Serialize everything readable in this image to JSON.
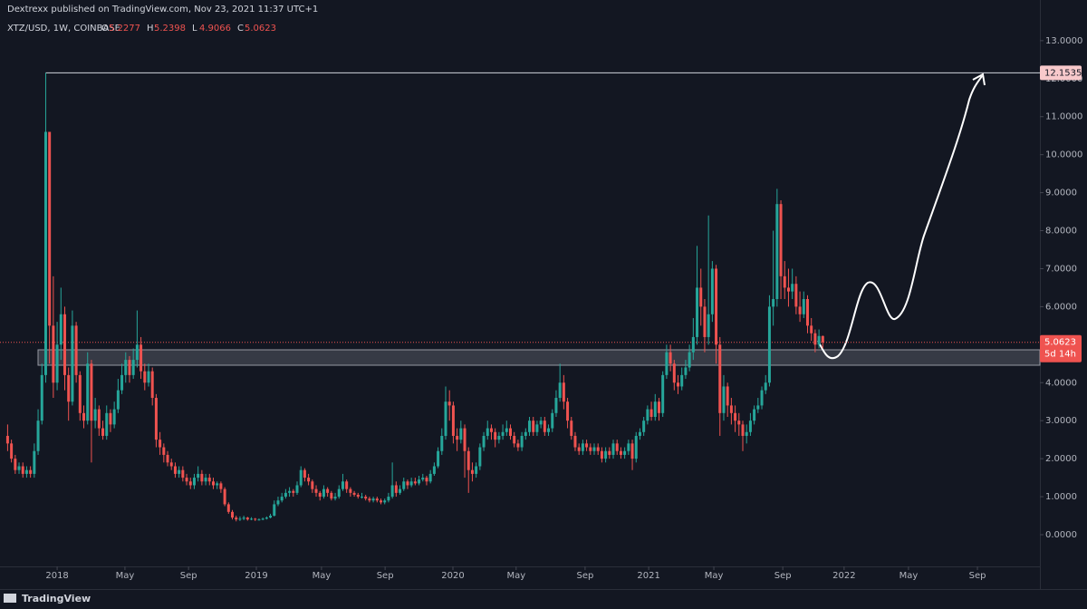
{
  "chart_data": {
    "type": "candlestick",
    "header": "Dextrexx published on TradingView.com, Nov 23, 2021 11:37 UTC+1",
    "legend": {
      "symbol": "XTZ/USD, 1W, COINBASE",
      "open": {
        "label": "O",
        "value": 5.2277
      },
      "high": {
        "label": "H",
        "value": 5.2398
      },
      "low": {
        "label": "L",
        "value": 4.9066
      },
      "close": {
        "label": "C",
        "value": 5.0623
      }
    },
    "footer": "TradingView",
    "up_color": "#26a69a",
    "down_color": "#ef5350",
    "level": 12.1535,
    "last_price": {
      "value": 5.0623,
      "countdown": "5d 14h"
    },
    "xlim": [
      -2,
      271
    ],
    "ylim": [
      -0.835,
      14.07
    ],
    "xticks": [
      {
        "value": 13,
        "label": "2018"
      },
      {
        "value": 30.8,
        "label": "May"
      },
      {
        "value": 47.5,
        "label": "Sep"
      },
      {
        "value": 65.3,
        "label": "2019"
      },
      {
        "value": 82.4,
        "label": "May"
      },
      {
        "value": 99.1,
        "label": "Sep"
      },
      {
        "value": 116.9,
        "label": "2020"
      },
      {
        "value": 133.5,
        "label": "May"
      },
      {
        "value": 151.6,
        "label": "Sep"
      },
      {
        "value": 168.3,
        "label": "2021"
      },
      {
        "value": 185.4,
        "label": "May"
      },
      {
        "value": 203.5,
        "label": "Sep"
      },
      {
        "value": 219.6,
        "label": "2022"
      },
      {
        "value": 236.5,
        "label": "May"
      },
      {
        "value": 254.6,
        "label": "Sep"
      }
    ],
    "yticks": [
      {
        "value": 0,
        "label": "0.0000"
      },
      {
        "value": 1,
        "label": "1.0000"
      },
      {
        "value": 2,
        "label": "2.0000"
      },
      {
        "value": 3,
        "label": "3.0000"
      },
      {
        "value": 4,
        "label": "4.0000"
      },
      {
        "value": 5,
        "label": "5.0000"
      },
      {
        "value": 6,
        "label": "6.0000"
      },
      {
        "value": 7,
        "label": "7.0000"
      },
      {
        "value": 8,
        "label": "8.0000"
      },
      {
        "value": 9,
        "label": "9.0000"
      },
      {
        "value": 10,
        "label": "10.0000"
      },
      {
        "value": 11,
        "label": "11.0000"
      },
      {
        "value": 12,
        "label": "12.0000"
      },
      {
        "value": 13,
        "label": "13.0000"
      }
    ],
    "ohlc": [
      [
        2.6,
        2.9,
        2.2,
        2.4
      ],
      [
        2.4,
        2.5,
        1.9,
        2.0
      ],
      [
        2.0,
        2.1,
        1.6,
        1.7
      ],
      [
        1.7,
        1.9,
        1.6,
        1.8
      ],
      [
        1.8,
        1.9,
        1.5,
        1.6
      ],
      [
        1.6,
        1.8,
        1.5,
        1.7
      ],
      [
        1.7,
        1.8,
        1.5,
        1.6
      ],
      [
        1.6,
        2.4,
        1.5,
        2.2
      ],
      [
        2.2,
        3.3,
        2.1,
        3.0
      ],
      [
        3.0,
        4.5,
        2.9,
        4.2
      ],
      [
        4.2,
        12.1535,
        4.0,
        10.6
      ],
      [
        10.6,
        10.6,
        4.5,
        5.5
      ],
      [
        5.5,
        6.8,
        3.6,
        4.0
      ],
      [
        4.0,
        5.6,
        3.8,
        5.0
      ],
      [
        5.0,
        6.5,
        4.6,
        5.8
      ],
      [
        5.8,
        6.0,
        3.8,
        4.2
      ],
      [
        4.2,
        4.4,
        3.0,
        3.5
      ],
      [
        3.5,
        5.9,
        3.4,
        5.5
      ],
      [
        5.5,
        5.6,
        4.0,
        4.2
      ],
      [
        4.2,
        4.3,
        3.0,
        3.2
      ],
      [
        3.2,
        3.4,
        2.8,
        3.0
      ],
      [
        3.0,
        4.8,
        2.9,
        4.5
      ],
      [
        4.5,
        4.6,
        1.9,
        3.0
      ],
      [
        3.0,
        3.6,
        2.8,
        3.3
      ],
      [
        3.3,
        3.4,
        2.6,
        2.8
      ],
      [
        2.8,
        3.0,
        2.5,
        2.6
      ],
      [
        2.6,
        3.4,
        2.5,
        3.2
      ],
      [
        3.2,
        3.3,
        2.7,
        2.9
      ],
      [
        2.9,
        3.5,
        2.8,
        3.3
      ],
      [
        3.3,
        4.1,
        3.2,
        3.8
      ],
      [
        3.8,
        4.5,
        3.7,
        4.2
      ],
      [
        4.2,
        4.8,
        4.0,
        4.6
      ],
      [
        4.6,
        4.7,
        4.0,
        4.2
      ],
      [
        4.2,
        4.9,
        4.1,
        4.6
      ],
      [
        4.6,
        5.9,
        4.4,
        5.0
      ],
      [
        5.0,
        5.2,
        4.1,
        4.3
      ],
      [
        4.3,
        4.5,
        3.8,
        4.0
      ],
      [
        4.0,
        4.5,
        3.9,
        4.3
      ],
      [
        4.3,
        4.4,
        3.4,
        3.6
      ],
      [
        3.6,
        3.7,
        2.3,
        2.5
      ],
      [
        2.5,
        2.7,
        2.1,
        2.3
      ],
      [
        2.3,
        2.4,
        1.9,
        2.1
      ],
      [
        2.1,
        2.2,
        1.8,
        1.9
      ],
      [
        1.9,
        2.0,
        1.7,
        1.8
      ],
      [
        1.8,
        1.9,
        1.5,
        1.6
      ],
      [
        1.6,
        1.8,
        1.5,
        1.7
      ],
      [
        1.7,
        1.8,
        1.4,
        1.5
      ],
      [
        1.5,
        1.6,
        1.3,
        1.4
      ],
      [
        1.4,
        1.5,
        1.2,
        1.3
      ],
      [
        1.3,
        1.6,
        1.2,
        1.5
      ],
      [
        1.5,
        1.8,
        1.4,
        1.6
      ],
      [
        1.6,
        1.7,
        1.3,
        1.4
      ],
      [
        1.4,
        1.6,
        1.3,
        1.5
      ],
      [
        1.5,
        1.6,
        1.3,
        1.4
      ],
      [
        1.4,
        1.5,
        1.2,
        1.3
      ],
      [
        1.3,
        1.4,
        1.2,
        1.35
      ],
      [
        1.35,
        1.4,
        1.1,
        1.2
      ],
      [
        1.2,
        1.25,
        0.75,
        0.8
      ],
      [
        0.8,
        0.85,
        0.55,
        0.6
      ],
      [
        0.6,
        0.65,
        0.4,
        0.45
      ],
      [
        0.45,
        0.5,
        0.35,
        0.4
      ],
      [
        0.4,
        0.48,
        0.36,
        0.42
      ],
      [
        0.42,
        0.5,
        0.38,
        0.45
      ],
      [
        0.45,
        0.47,
        0.37,
        0.4
      ],
      [
        0.4,
        0.46,
        0.38,
        0.42
      ],
      [
        0.42,
        0.44,
        0.36,
        0.4
      ],
      [
        0.4,
        0.43,
        0.37,
        0.4
      ],
      [
        0.4,
        0.45,
        0.38,
        0.42
      ],
      [
        0.42,
        0.48,
        0.4,
        0.45
      ],
      [
        0.45,
        0.55,
        0.43,
        0.5
      ],
      [
        0.5,
        0.9,
        0.48,
        0.8
      ],
      [
        0.8,
        1.0,
        0.75,
        0.9
      ],
      [
        0.9,
        1.1,
        0.85,
        1.0
      ],
      [
        1.0,
        1.2,
        0.95,
        1.1
      ],
      [
        1.1,
        1.25,
        1.0,
        1.15
      ],
      [
        1.15,
        1.2,
        1.0,
        1.1
      ],
      [
        1.1,
        1.4,
        1.05,
        1.3
      ],
      [
        1.3,
        1.8,
        1.25,
        1.7
      ],
      [
        1.7,
        1.75,
        1.4,
        1.5
      ],
      [
        1.5,
        1.6,
        1.3,
        1.4
      ],
      [
        1.4,
        1.45,
        1.1,
        1.2
      ],
      [
        1.2,
        1.3,
        1.0,
        1.1
      ],
      [
        1.1,
        1.15,
        0.9,
        1.0
      ],
      [
        1.0,
        1.3,
        0.95,
        1.2
      ],
      [
        1.2,
        1.25,
        1.0,
        1.1
      ],
      [
        1.1,
        1.15,
        0.9,
        0.95
      ],
      [
        0.95,
        1.1,
        0.9,
        1.0
      ],
      [
        1.0,
        1.3,
        0.95,
        1.2
      ],
      [
        1.2,
        1.6,
        1.15,
        1.4
      ],
      [
        1.4,
        1.45,
        1.1,
        1.2
      ],
      [
        1.2,
        1.25,
        1.0,
        1.1
      ],
      [
        1.1,
        1.15,
        1.0,
        1.05
      ],
      [
        1.05,
        1.1,
        0.95,
        1.0
      ],
      [
        1.0,
        1.1,
        0.95,
        1.0
      ],
      [
        1.0,
        1.05,
        0.9,
        0.95
      ],
      [
        0.95,
        1.0,
        0.85,
        0.9
      ],
      [
        0.9,
        1.0,
        0.85,
        0.95
      ],
      [
        0.95,
        1.0,
        0.85,
        0.9
      ],
      [
        0.9,
        0.95,
        0.8,
        0.85
      ],
      [
        0.85,
        0.95,
        0.8,
        0.9
      ],
      [
        0.9,
        1.1,
        0.85,
        1.0
      ],
      [
        1.0,
        1.9,
        0.95,
        1.3
      ],
      [
        1.3,
        1.4,
        1.0,
        1.1
      ],
      [
        1.1,
        1.3,
        1.05,
        1.2
      ],
      [
        1.2,
        1.5,
        1.15,
        1.4
      ],
      [
        1.4,
        1.45,
        1.2,
        1.3
      ],
      [
        1.3,
        1.5,
        1.25,
        1.4
      ],
      [
        1.4,
        1.5,
        1.3,
        1.35
      ],
      [
        1.35,
        1.55,
        1.3,
        1.45
      ],
      [
        1.45,
        1.6,
        1.4,
        1.5
      ],
      [
        1.5,
        1.55,
        1.3,
        1.4
      ],
      [
        1.4,
        1.7,
        1.35,
        1.6
      ],
      [
        1.6,
        1.9,
        1.55,
        1.8
      ],
      [
        1.8,
        2.3,
        1.75,
        2.2
      ],
      [
        2.2,
        2.8,
        2.1,
        2.6
      ],
      [
        2.6,
        3.9,
        2.5,
        3.5
      ],
      [
        3.5,
        3.8,
        3.0,
        3.4
      ],
      [
        3.4,
        3.5,
        2.4,
        2.6
      ],
      [
        2.6,
        2.8,
        2.2,
        2.5
      ],
      [
        2.5,
        3.0,
        2.4,
        2.8
      ],
      [
        2.8,
        2.9,
        1.5,
        2.2
      ],
      [
        2.2,
        2.3,
        1.1,
        1.7
      ],
      [
        1.7,
        1.9,
        1.4,
        1.6
      ],
      [
        1.6,
        1.9,
        1.5,
        1.8
      ],
      [
        1.8,
        2.4,
        1.7,
        2.3
      ],
      [
        2.3,
        2.7,
        2.2,
        2.6
      ],
      [
        2.6,
        3.0,
        2.5,
        2.8
      ],
      [
        2.8,
        2.9,
        2.5,
        2.7
      ],
      [
        2.7,
        2.8,
        2.3,
        2.5
      ],
      [
        2.5,
        2.7,
        2.4,
        2.6
      ],
      [
        2.6,
        2.9,
        2.5,
        2.7
      ],
      [
        2.7,
        3.0,
        2.6,
        2.8
      ],
      [
        2.8,
        2.9,
        2.5,
        2.6
      ],
      [
        2.6,
        2.7,
        2.3,
        2.4
      ],
      [
        2.4,
        2.5,
        2.2,
        2.3
      ],
      [
        2.3,
        2.7,
        2.2,
        2.6
      ],
      [
        2.6,
        2.8,
        2.5,
        2.7
      ],
      [
        2.7,
        3.1,
        2.6,
        3.0
      ],
      [
        3.0,
        3.1,
        2.6,
        2.7
      ],
      [
        2.7,
        3.0,
        2.6,
        2.9
      ],
      [
        2.9,
        3.1,
        2.8,
        3.0
      ],
      [
        3.0,
        3.1,
        2.6,
        2.7
      ],
      [
        2.7,
        2.9,
        2.6,
        2.8
      ],
      [
        2.8,
        3.3,
        2.7,
        3.2
      ],
      [
        3.2,
        3.8,
        3.1,
        3.6
      ],
      [
        3.6,
        4.5,
        3.5,
        4.0
      ],
      [
        4.0,
        4.2,
        3.3,
        3.5
      ],
      [
        3.5,
        3.6,
        2.8,
        3.0
      ],
      [
        3.0,
        3.1,
        2.5,
        2.6
      ],
      [
        2.6,
        2.7,
        2.2,
        2.3
      ],
      [
        2.3,
        2.4,
        2.1,
        2.2
      ],
      [
        2.2,
        2.5,
        2.1,
        2.4
      ],
      [
        2.4,
        2.5,
        2.2,
        2.3
      ],
      [
        2.3,
        2.4,
        2.1,
        2.2
      ],
      [
        2.2,
        2.4,
        2.1,
        2.3
      ],
      [
        2.3,
        2.4,
        2.1,
        2.2
      ],
      [
        2.2,
        2.3,
        1.9,
        2.0
      ],
      [
        2.0,
        2.3,
        1.9,
        2.2
      ],
      [
        2.2,
        2.3,
        2.0,
        2.1
      ],
      [
        2.1,
        2.5,
        2.0,
        2.4
      ],
      [
        2.4,
        2.5,
        2.1,
        2.2
      ],
      [
        2.2,
        2.3,
        2.0,
        2.1
      ],
      [
        2.1,
        2.3,
        2.0,
        2.2
      ],
      [
        2.2,
        2.5,
        2.1,
        2.4
      ],
      [
        2.4,
        2.5,
        1.7,
        2.0
      ],
      [
        2.0,
        2.7,
        1.9,
        2.6
      ],
      [
        2.6,
        2.8,
        2.5,
        2.7
      ],
      [
        2.7,
        3.1,
        2.6,
        3.0
      ],
      [
        3.0,
        3.4,
        2.9,
        3.3
      ],
      [
        3.3,
        3.5,
        3.0,
        3.1
      ],
      [
        3.1,
        3.7,
        3.0,
        3.5
      ],
      [
        3.5,
        3.6,
        3.0,
        3.2
      ],
      [
        3.2,
        4.3,
        3.1,
        4.2
      ],
      [
        4.2,
        5.0,
        4.1,
        4.8
      ],
      [
        4.8,
        5.0,
        4.3,
        4.5
      ],
      [
        4.5,
        4.6,
        3.8,
        4.0
      ],
      [
        4.0,
        4.2,
        3.7,
        3.9
      ],
      [
        3.9,
        4.4,
        3.8,
        4.2
      ],
      [
        4.2,
        4.6,
        4.1,
        4.4
      ],
      [
        4.4,
        5.0,
        4.3,
        4.8
      ],
      [
        4.8,
        5.7,
        4.6,
        5.2
      ],
      [
        5.2,
        7.6,
        5.0,
        6.5
      ],
      [
        6.5,
        7.0,
        5.5,
        6.0
      ],
      [
        6.0,
        6.2,
        4.8,
        5.2
      ],
      [
        5.2,
        8.4,
        5.0,
        5.8
      ],
      [
        5.8,
        7.2,
        5.6,
        7.0
      ],
      [
        7.0,
        7.1,
        4.5,
        5.0
      ],
      [
        5.0,
        5.2,
        2.6,
        3.2
      ],
      [
        3.2,
        4.2,
        3.0,
        3.9
      ],
      [
        3.9,
        4.0,
        3.1,
        3.4
      ],
      [
        3.4,
        3.6,
        2.9,
        3.2
      ],
      [
        3.2,
        3.4,
        2.7,
        3.0
      ],
      [
        3.0,
        3.2,
        2.6,
        2.9
      ],
      [
        2.9,
        3.0,
        2.2,
        2.6
      ],
      [
        2.6,
        2.9,
        2.4,
        2.7
      ],
      [
        2.7,
        3.2,
        2.6,
        3.0
      ],
      [
        3.0,
        3.4,
        2.9,
        3.3
      ],
      [
        3.3,
        3.6,
        3.2,
        3.4
      ],
      [
        3.4,
        3.9,
        3.3,
        3.8
      ],
      [
        3.8,
        4.2,
        3.7,
        4.0
      ],
      [
        4.0,
        6.3,
        3.9,
        6.0
      ],
      [
        6.0,
        8.0,
        5.5,
        6.2
      ],
      [
        6.2,
        9.1,
        6.0,
        8.7
      ],
      [
        8.7,
        8.8,
        6.2,
        6.8
      ],
      [
        6.8,
        7.2,
        6.2,
        6.5
      ],
      [
        6.5,
        7.0,
        6.0,
        6.4
      ],
      [
        6.4,
        7.0,
        6.2,
        6.6
      ],
      [
        6.6,
        6.8,
        5.8,
        6.0
      ],
      [
        6.0,
        6.4,
        5.6,
        5.8
      ],
      [
        5.8,
        6.4,
        5.7,
        6.2
      ],
      [
        6.2,
        6.3,
        5.3,
        5.5
      ],
      [
        5.5,
        5.7,
        5.1,
        5.3
      ],
      [
        5.3,
        5.4,
        4.8,
        5.0
      ],
      [
        5.0,
        5.4,
        4.9,
        5.2277
      ],
      [
        5.2277,
        5.2398,
        4.9066,
        5.0623
      ]
    ]
  }
}
